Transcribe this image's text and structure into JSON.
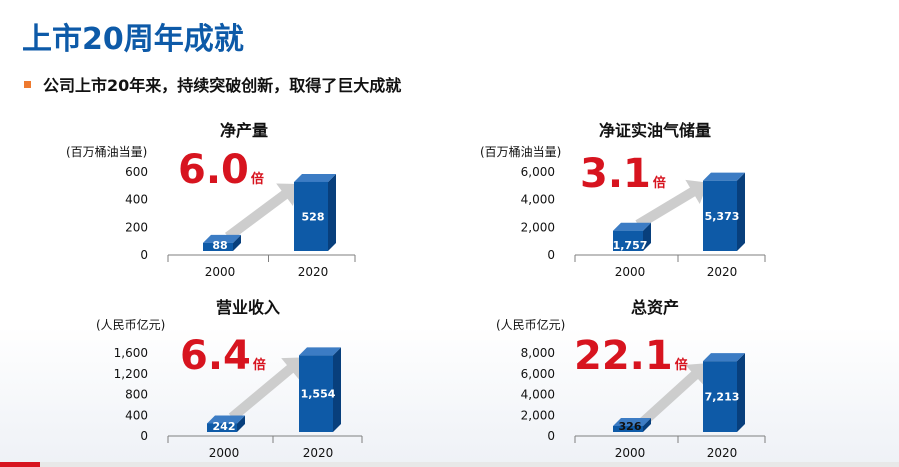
{
  "header": {
    "title": "上市20周年成就",
    "subtitle": "公司上市20年来，持续突破创新，取得了巨大成就"
  },
  "colors": {
    "title": "#0d5aa8",
    "bar_front": "#0e5aa7",
    "bar_side": "#083f7c",
    "bar_top": "#3c7cc4",
    "multiplier": "#d7141f",
    "arrow": "#c8c8c8",
    "bullet": "#ee7a2f"
  },
  "chart_data": [
    {
      "type": "bar",
      "title": "净产量",
      "ylabel": "(百万桶油当量)",
      "categories": [
        "2000",
        "2020"
      ],
      "values": [
        88,
        528
      ],
      "value_labels": [
        "88",
        "528"
      ],
      "ylim": [
        0,
        600
      ],
      "yticks": [
        "0",
        "200",
        "400",
        "600"
      ],
      "multiplier": "6.0",
      "multiplier_suffix": "倍"
    },
    {
      "type": "bar",
      "title": "净证实油气储量",
      "ylabel": "(百万桶油当量)",
      "categories": [
        "2000",
        "2020"
      ],
      "values": [
        1757,
        5373
      ],
      "value_labels": [
        "1,757",
        "5,373"
      ],
      "ylim": [
        0,
        6000
      ],
      "yticks": [
        "0",
        "2,000",
        "4,000",
        "6,000"
      ],
      "multiplier": "3.1",
      "multiplier_suffix": "倍"
    },
    {
      "type": "bar",
      "title": "营业收入",
      "ylabel": "(人民币亿元)",
      "categories": [
        "2000",
        "2020"
      ],
      "values": [
        242,
        1554
      ],
      "value_labels": [
        "242",
        "1,554"
      ],
      "ylim": [
        0,
        1600
      ],
      "yticks": [
        "0",
        "400",
        "800",
        "1,200",
        "1,600"
      ],
      "multiplier": "6.4",
      "multiplier_suffix": "倍"
    },
    {
      "type": "bar",
      "title": "总资产",
      "ylabel": "(人民币亿元)",
      "categories": [
        "2000",
        "2020"
      ],
      "values": [
        326,
        7213
      ],
      "value_labels": [
        "326",
        "7,213"
      ],
      "ylim": [
        0,
        8000
      ],
      "yticks": [
        "0",
        "2,000",
        "4,000",
        "6,000",
        "8,000"
      ],
      "multiplier": "22.1",
      "multiplier_suffix": "倍"
    }
  ]
}
